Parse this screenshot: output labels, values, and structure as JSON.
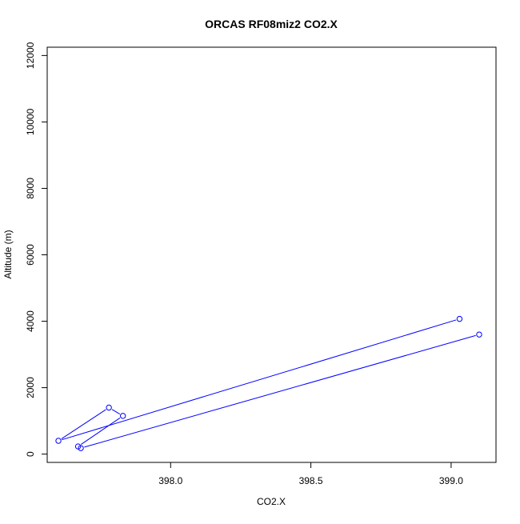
{
  "chart_data": {
    "type": "line",
    "title": "ORCAS RF08miz2 CO2.X",
    "xlabel": "CO2.X",
    "ylabel": "Altitude (m)",
    "xlim": [
      397.56,
      399.16
    ],
    "ylim": [
      -250,
      12250
    ],
    "xticks": [
      398.0,
      398.5,
      399.0
    ],
    "xtick_labels": [
      "398.0",
      "398.5",
      "399.0"
    ],
    "yticks": [
      0,
      2000,
      4000,
      6000,
      8000,
      10000,
      12000
    ],
    "ytick_labels": [
      "0",
      "2000",
      "4000",
      "6000",
      "8000",
      "10000",
      "12000"
    ],
    "grid": false,
    "series": [
      {
        "color": "#0000ff",
        "marker": "open-circle",
        "points": [
          {
            "x": 399.1,
            "y": 3600
          },
          {
            "x": 397.68,
            "y": 180
          },
          {
            "x": 397.67,
            "y": 230
          },
          {
            "x": 397.83,
            "y": 1150
          },
          {
            "x": 397.78,
            "y": 1400
          },
          {
            "x": 397.6,
            "y": 400
          },
          {
            "x": 399.03,
            "y": 4070
          }
        ]
      }
    ]
  }
}
